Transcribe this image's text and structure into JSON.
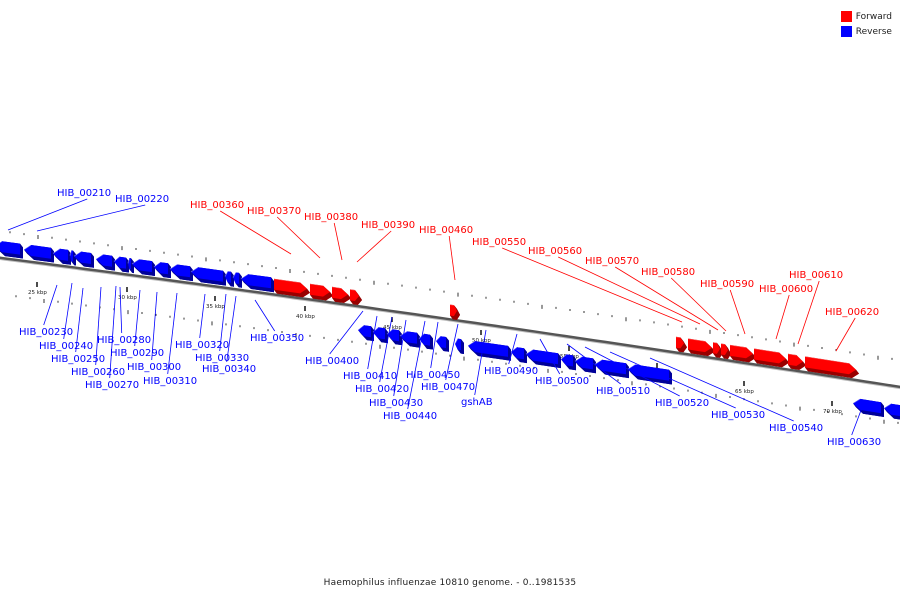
{
  "legend": {
    "forward_label": "Forward",
    "reverse_label": "Reverse",
    "forward_color": "#ff0000",
    "reverse_color": "#0000ff"
  },
  "caption": "Haemophilus influenzae 10810 genome. - 0..1981535",
  "scale_labels": [
    "25 kbp",
    "30 kbp",
    "35 kbp",
    "40 kbp",
    "45 kbp",
    "50 kbp",
    "55 kbp",
    "60 kbp",
    "65 kbp",
    "70 kbp"
  ],
  "genes": [
    {
      "name": "HIB_00210",
      "strand": "reverse"
    },
    {
      "name": "HIB_00220",
      "strand": "reverse"
    },
    {
      "name": "HIB_00230",
      "strand": "reverse"
    },
    {
      "name": "HIB_00240",
      "strand": "reverse"
    },
    {
      "name": "HIB_00250",
      "strand": "reverse"
    },
    {
      "name": "HIB_00260",
      "strand": "reverse"
    },
    {
      "name": "HIB_00270",
      "strand": "reverse"
    },
    {
      "name": "HIB_00280",
      "strand": "reverse"
    },
    {
      "name": "HIB_00290",
      "strand": "reverse"
    },
    {
      "name": "HIB_00300",
      "strand": "reverse"
    },
    {
      "name": "HIB_00310",
      "strand": "reverse"
    },
    {
      "name": "HIB_00320",
      "strand": "reverse"
    },
    {
      "name": "HIB_00330",
      "strand": "reverse"
    },
    {
      "name": "HIB_00340",
      "strand": "reverse"
    },
    {
      "name": "HIB_00350",
      "strand": "reverse"
    },
    {
      "name": "HIB_00360",
      "strand": "forward"
    },
    {
      "name": "HIB_00370",
      "strand": "forward"
    },
    {
      "name": "HIB_00380",
      "strand": "forward"
    },
    {
      "name": "HIB_00390",
      "strand": "forward"
    },
    {
      "name": "HIB_00400",
      "strand": "reverse"
    },
    {
      "name": "HIB_00410",
      "strand": "reverse"
    },
    {
      "name": "HIB_00420",
      "strand": "reverse"
    },
    {
      "name": "HIB_00430",
      "strand": "reverse"
    },
    {
      "name": "HIB_00440",
      "strand": "reverse"
    },
    {
      "name": "HIB_00450",
      "strand": "reverse"
    },
    {
      "name": "HIB_00460",
      "strand": "forward"
    },
    {
      "name": "HIB_00470",
      "strand": "reverse"
    },
    {
      "name": "gshAB",
      "strand": "reverse"
    },
    {
      "name": "HIB_00490",
      "strand": "reverse"
    },
    {
      "name": "HIB_00500",
      "strand": "reverse"
    },
    {
      "name": "HIB_00510",
      "strand": "reverse"
    },
    {
      "name": "HIB_00520",
      "strand": "reverse"
    },
    {
      "name": "HIB_00530",
      "strand": "reverse"
    },
    {
      "name": "HIB_00540",
      "strand": "reverse"
    },
    {
      "name": "HIB_00550",
      "strand": "forward"
    },
    {
      "name": "HIB_00560",
      "strand": "forward"
    },
    {
      "name": "HIB_00570",
      "strand": "forward"
    },
    {
      "name": "HIB_00580",
      "strand": "forward"
    },
    {
      "name": "HIB_00590",
      "strand": "forward"
    },
    {
      "name": "HIB_00600",
      "strand": "forward"
    },
    {
      "name": "HIB_00610",
      "strand": "forward"
    },
    {
      "name": "HIB_00620",
      "strand": "forward"
    },
    {
      "name": "HIB_00630",
      "strand": "reverse"
    }
  ]
}
